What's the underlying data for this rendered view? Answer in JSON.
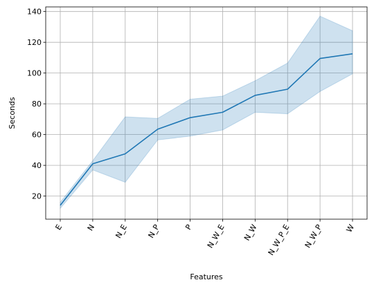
{
  "chart_data": {
    "type": "line",
    "title": "",
    "xlabel": "Features",
    "ylabel": "Seconds",
    "categories": [
      "E",
      "N",
      "N_E",
      "N_P",
      "P",
      "N_W_E",
      "N_W",
      "N_W_P_E",
      "N_W_P",
      "W"
    ],
    "series": [
      {
        "values": [
          14,
          41,
          47.5,
          63.5,
          71,
          74.5,
          85.5,
          89.5,
          109.5,
          112.5
        ],
        "lower": [
          12,
          37,
          29,
          56.5,
          59,
          63,
          74.5,
          73.5,
          88,
          99.5
        ],
        "upper": [
          16,
          43,
          71.5,
          70.5,
          83,
          85,
          95,
          106.5,
          137,
          127.5
        ],
        "color": "#1f77b4",
        "band_color": "#1f77b4"
      }
    ],
    "ylim": [
      5,
      143
    ],
    "yticks": [
      20,
      40,
      60,
      80,
      100,
      120,
      140
    ],
    "grid": true,
    "legend": false
  }
}
